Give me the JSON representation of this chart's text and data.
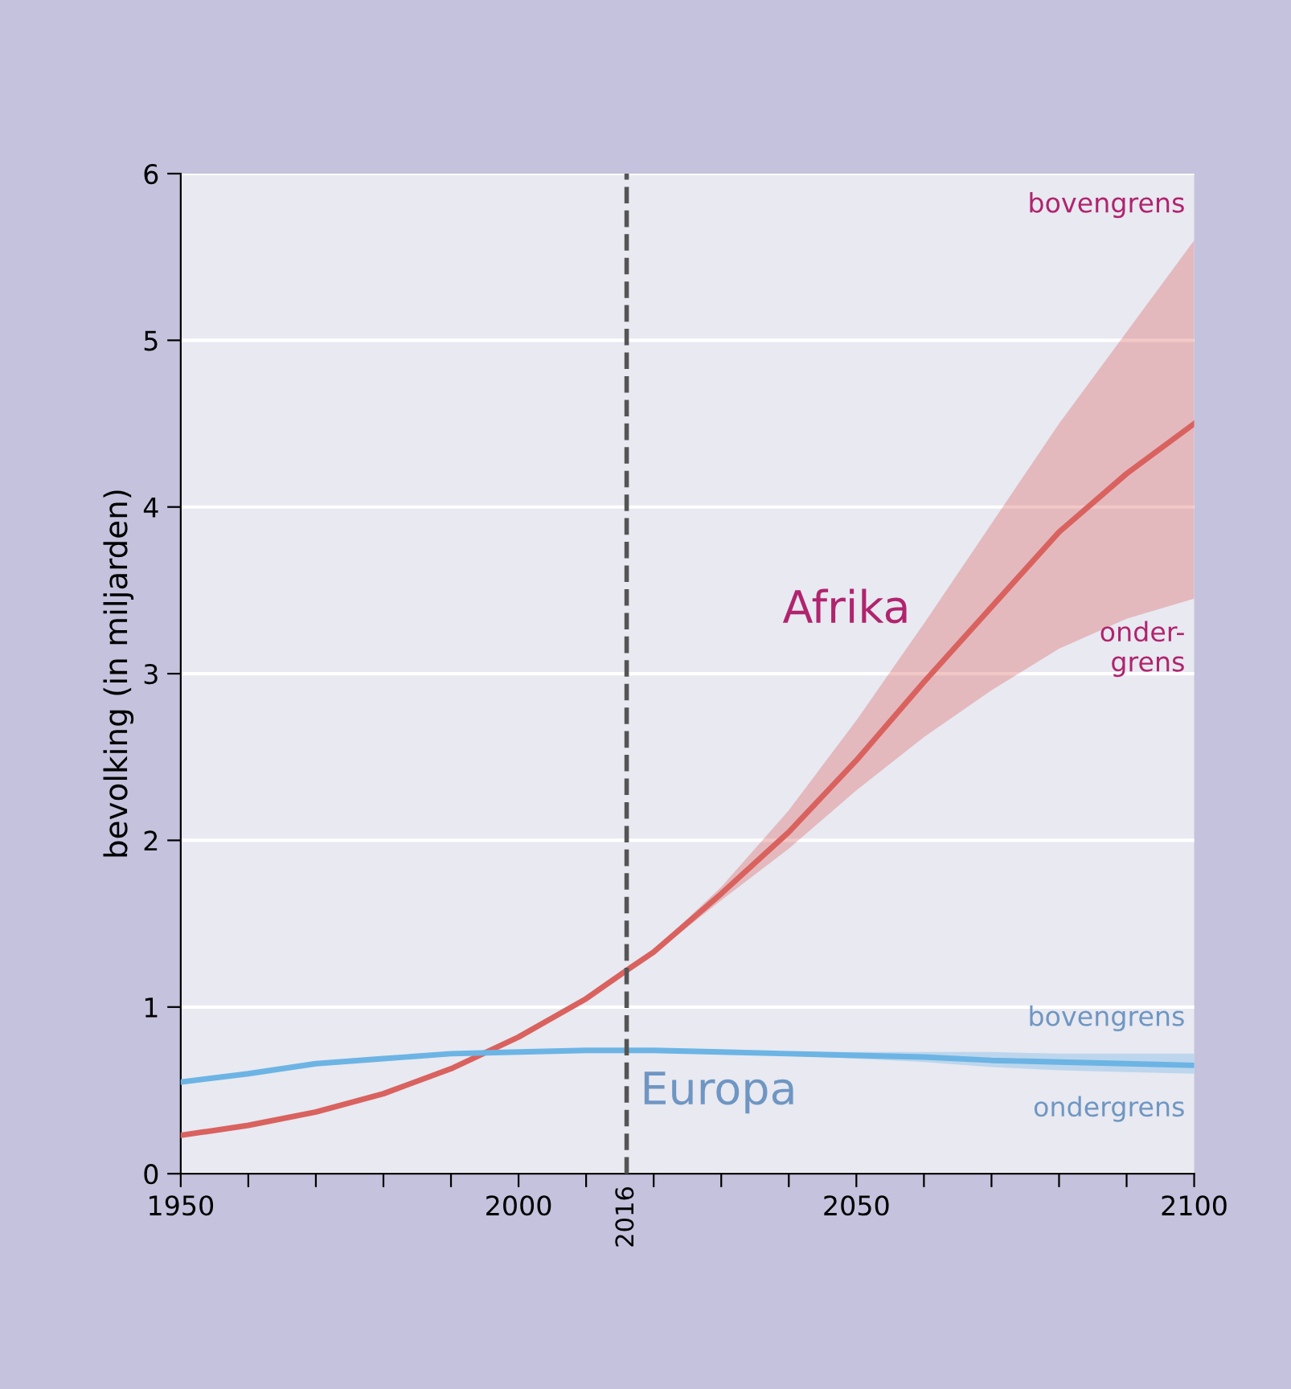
{
  "chart_data": {
    "type": "line",
    "ylabel": "bevolking (in miljarden)",
    "x": [
      1950,
      1960,
      1970,
      1980,
      1990,
      2000,
      2010,
      2016,
      2020,
      2030,
      2040,
      2050,
      2060,
      2070,
      2080,
      2090,
      2100
    ],
    "series": [
      {
        "name": "Afrika",
        "color": "#d9625f",
        "values": [
          0.23,
          0.29,
          0.37,
          0.48,
          0.63,
          0.82,
          1.05,
          1.22,
          1.33,
          1.68,
          2.05,
          2.48,
          2.95,
          3.4,
          3.85,
          4.2,
          4.5
        ],
        "lower": [
          null,
          null,
          null,
          null,
          null,
          null,
          null,
          1.22,
          1.32,
          1.64,
          1.95,
          2.3,
          2.62,
          2.9,
          3.15,
          3.33,
          3.45
        ],
        "upper": [
          null,
          null,
          null,
          null,
          null,
          null,
          null,
          1.22,
          1.34,
          1.72,
          2.18,
          2.72,
          3.3,
          3.9,
          4.5,
          5.05,
          5.6
        ]
      },
      {
        "name": "Europa",
        "color": "#6cb4e4",
        "values": [
          0.55,
          0.6,
          0.66,
          0.69,
          0.72,
          0.73,
          0.74,
          0.74,
          0.74,
          0.73,
          0.72,
          0.71,
          0.7,
          0.68,
          0.67,
          0.66,
          0.65
        ],
        "lower": [
          null,
          null,
          null,
          null,
          null,
          null,
          null,
          0.74,
          0.74,
          0.73,
          0.71,
          0.69,
          0.67,
          0.64,
          0.62,
          0.61,
          0.6
        ],
        "upper": [
          null,
          null,
          null,
          null,
          null,
          null,
          null,
          0.74,
          0.74,
          0.74,
          0.73,
          0.73,
          0.73,
          0.73,
          0.72,
          0.72,
          0.72
        ]
      }
    ],
    "xlim": [
      1950,
      2100
    ],
    "xticks": [
      1950,
      {
        "value": 1960,
        "label": null
      },
      {
        "value": 1970,
        "label": null
      },
      {
        "value": 1980,
        "label": null
      },
      {
        "value": 1990,
        "label": null
      },
      2000,
      {
        "value": 2010,
        "label": null
      },
      {
        "value": 2020,
        "label": null
      },
      {
        "value": 2030,
        "label": null
      },
      {
        "value": 2040,
        "label": null
      },
      2050,
      {
        "value": 2060,
        "label": null
      },
      {
        "value": 2070,
        "label": null
      },
      {
        "value": 2080,
        "label": null
      },
      {
        "value": 2090,
        "label": null
      },
      2100
    ],
    "ylim": [
      0,
      6
    ],
    "yticks": [
      0,
      1,
      2,
      3,
      4,
      5,
      6
    ],
    "grid": "y",
    "legend": false,
    "marker": "none",
    "line_style": "solid",
    "ref_lines": [
      {
        "axis": "x",
        "value": 2016,
        "label": "2016",
        "color": "#555555",
        "line_style": "dashed"
      }
    ],
    "annotations": [
      "bovengrens",
      "onder-\ngrens",
      "bovengrens",
      "ondergrens"
    ]
  }
}
